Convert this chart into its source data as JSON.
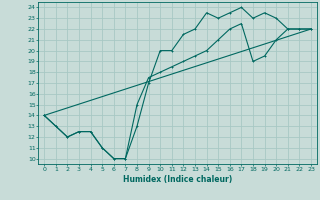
{
  "xlabel": "Humidex (Indice chaleur)",
  "bg_color": "#c8dcd8",
  "grid_color": "#a8c8c4",
  "line_color": "#006860",
  "xlim": [
    -0.5,
    23.5
  ],
  "ylim": [
    9.5,
    24.5
  ],
  "xticks": [
    0,
    1,
    2,
    3,
    4,
    5,
    6,
    7,
    8,
    9,
    10,
    11,
    12,
    13,
    14,
    15,
    16,
    17,
    18,
    19,
    20,
    21,
    22,
    23
  ],
  "yticks": [
    10,
    11,
    12,
    13,
    14,
    15,
    16,
    17,
    18,
    19,
    20,
    21,
    22,
    23,
    24
  ],
  "line1_x": [
    0,
    1,
    2,
    3,
    4,
    5,
    6,
    7,
    8,
    9,
    10,
    11,
    12,
    13,
    14,
    15,
    16,
    17,
    18,
    19,
    20,
    21,
    22,
    23
  ],
  "line1_y": [
    14,
    13,
    12,
    12.5,
    12.5,
    11,
    10,
    10,
    13,
    17,
    20,
    20,
    21.5,
    22,
    23.5,
    23,
    23.5,
    24,
    23,
    23.5,
    23,
    22,
    22,
    22
  ],
  "line2_x": [
    0,
    1,
    2,
    3,
    4,
    5,
    6,
    7,
    8,
    9,
    10,
    11,
    12,
    13,
    14,
    15,
    16,
    17,
    18,
    19,
    20,
    21,
    22,
    23
  ],
  "line2_y": [
    14,
    13,
    12,
    12.5,
    12.5,
    11,
    10,
    10,
    15,
    17.5,
    18,
    18.5,
    19,
    19.5,
    20,
    21,
    22,
    22.5,
    19,
    19.5,
    21,
    22,
    22,
    22
  ],
  "line3_x": [
    0,
    23
  ],
  "line3_y": [
    14,
    22
  ]
}
